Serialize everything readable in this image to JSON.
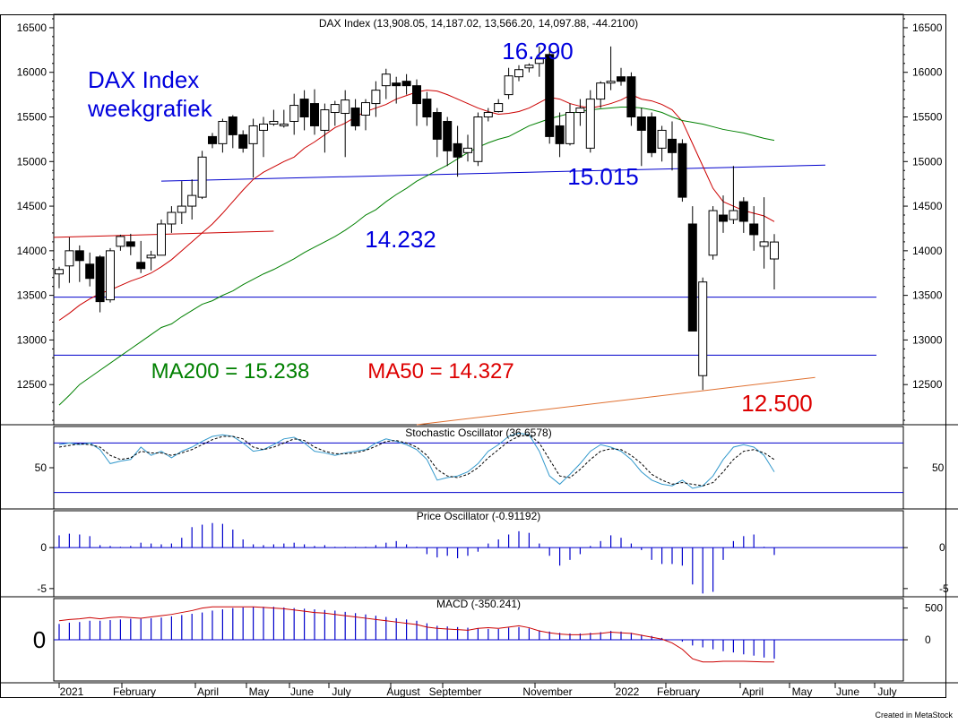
{
  "chart_data": {
    "type": "candlestick",
    "title": "DAX Index (13,908.05, 14,187.02, 13,566.20, 14,097.88, -44.2100)",
    "footer": "Created in MetaStock",
    "price_axis": {
      "ylim": [
        12050,
        16650
      ],
      "ticks": [
        12500,
        13000,
        13500,
        14000,
        14500,
        15000,
        15500,
        16000,
        16500
      ]
    },
    "time_axis": {
      "labels": [
        "2021",
        "February",
        "April",
        "May",
        "June",
        "July",
        "August",
        "September",
        "November",
        "2022",
        "February",
        "April",
        "May",
        "June",
        "July"
      ]
    },
    "candles": [
      {
        "o": 13740,
        "h": 13820,
        "l": 13580,
        "c": 13790
      },
      {
        "o": 13830,
        "h": 14150,
        "l": 13640,
        "c": 14000
      },
      {
        "o": 14000,
        "h": 14060,
        "l": 13650,
        "c": 13890
      },
      {
        "o": 13850,
        "h": 13980,
        "l": 13600,
        "c": 13690
      },
      {
        "o": 13930,
        "h": 13950,
        "l": 13310,
        "c": 13430
      },
      {
        "o": 13450,
        "h": 14030,
        "l": 13420,
        "c": 14000
      },
      {
        "o": 14050,
        "h": 14180,
        "l": 14000,
        "c": 14160
      },
      {
        "o": 14100,
        "h": 14190,
        "l": 13950,
        "c": 14050
      },
      {
        "o": 13870,
        "h": 14110,
        "l": 13750,
        "c": 13800
      },
      {
        "o": 13920,
        "h": 14000,
        "l": 13780,
        "c": 13950
      },
      {
        "o": 13950,
        "h": 14350,
        "l": 13950,
        "c": 14300
      },
      {
        "o": 14300,
        "h": 14500,
        "l": 14200,
        "c": 14430
      },
      {
        "o": 14430,
        "h": 14780,
        "l": 14300,
        "c": 14500
      },
      {
        "o": 14500,
        "h": 14800,
        "l": 14350,
        "c": 14620
      },
      {
        "o": 14600,
        "h": 15120,
        "l": 14580,
        "c": 15050
      },
      {
        "o": 15280,
        "h": 15320,
        "l": 15150,
        "c": 15200
      },
      {
        "o": 15200,
        "h": 15480,
        "l": 15100,
        "c": 15450
      },
      {
        "o": 15500,
        "h": 15520,
        "l": 15150,
        "c": 15300
      },
      {
        "o": 15300,
        "h": 15350,
        "l": 15100,
        "c": 15150
      },
      {
        "o": 15200,
        "h": 15480,
        "l": 14820,
        "c": 15400
      },
      {
        "o": 15350,
        "h": 15500,
        "l": 15050,
        "c": 15420
      },
      {
        "o": 15420,
        "h": 15580,
        "l": 15400,
        "c": 15450
      },
      {
        "o": 15400,
        "h": 15580,
        "l": 15380,
        "c": 15420
      },
      {
        "o": 15450,
        "h": 15760,
        "l": 15300,
        "c": 15630
      },
      {
        "o": 15700,
        "h": 15800,
        "l": 15350,
        "c": 15500
      },
      {
        "o": 15650,
        "h": 15810,
        "l": 15300,
        "c": 15400
      },
      {
        "o": 15350,
        "h": 15650,
        "l": 15100,
        "c": 15580
      },
      {
        "o": 15550,
        "h": 15680,
        "l": 15400,
        "c": 15640
      },
      {
        "o": 15540,
        "h": 15800,
        "l": 15050,
        "c": 15690
      },
      {
        "o": 15600,
        "h": 15700,
        "l": 15350,
        "c": 15400
      },
      {
        "o": 15520,
        "h": 15700,
        "l": 15350,
        "c": 15660
      },
      {
        "o": 15650,
        "h": 15900,
        "l": 15500,
        "c": 15800
      },
      {
        "o": 15850,
        "h": 16040,
        "l": 15700,
        "c": 15980
      },
      {
        "o": 15880,
        "h": 15950,
        "l": 15650,
        "c": 15850
      },
      {
        "o": 15900,
        "h": 15980,
        "l": 15750,
        "c": 15850
      },
      {
        "o": 15850,
        "h": 15920,
        "l": 15400,
        "c": 15650
      },
      {
        "o": 15700,
        "h": 15780,
        "l": 15400,
        "c": 15500
      },
      {
        "o": 15550,
        "h": 15600,
        "l": 15050,
        "c": 15250
      },
      {
        "o": 15450,
        "h": 15500,
        "l": 14950,
        "c": 15120
      },
      {
        "o": 15200,
        "h": 15400,
        "l": 14830,
        "c": 15050
      },
      {
        "o": 15100,
        "h": 15300,
        "l": 15000,
        "c": 15150
      },
      {
        "o": 15000,
        "h": 15550,
        "l": 14950,
        "c": 15500
      },
      {
        "o": 15500,
        "h": 15600,
        "l": 15450,
        "c": 15550
      },
      {
        "o": 15560,
        "h": 15700,
        "l": 15550,
        "c": 15650
      },
      {
        "o": 15750,
        "h": 16050,
        "l": 15700,
        "c": 15960
      },
      {
        "o": 15950,
        "h": 16080,
        "l": 15900,
        "c": 16030
      },
      {
        "o": 16050,
        "h": 16100,
        "l": 16000,
        "c": 16080
      },
      {
        "o": 16100,
        "h": 16290,
        "l": 15950,
        "c": 16150
      },
      {
        "o": 16200,
        "h": 16250,
        "l": 15200,
        "c": 15280
      },
      {
        "o": 15400,
        "h": 15550,
        "l": 15050,
        "c": 15200
      },
      {
        "o": 15200,
        "h": 15650,
        "l": 15180,
        "c": 15550
      },
      {
        "o": 15550,
        "h": 15700,
        "l": 15400,
        "c": 15600
      },
      {
        "o": 15150,
        "h": 15800,
        "l": 15100,
        "c": 15700
      },
      {
        "o": 15700,
        "h": 15900,
        "l": 15600,
        "c": 15880
      },
      {
        "o": 15880,
        "h": 16290,
        "l": 15800,
        "c": 15900
      },
      {
        "o": 15950,
        "h": 16050,
        "l": 15850,
        "c": 15900
      },
      {
        "o": 15950,
        "h": 16000,
        "l": 15400,
        "c": 15500
      },
      {
        "o": 15500,
        "h": 15600,
        "l": 14950,
        "c": 15350
      },
      {
        "o": 15500,
        "h": 15550,
        "l": 15050,
        "c": 15100
      },
      {
        "o": 15150,
        "h": 15400,
        "l": 15000,
        "c": 15350
      },
      {
        "o": 15250,
        "h": 15450,
        "l": 14900,
        "c": 15100
      },
      {
        "o": 15200,
        "h": 15250,
        "l": 14550,
        "c": 14600
      },
      {
        "o": 14300,
        "h": 14500,
        "l": 13100,
        "c": 13100
      },
      {
        "o": 12600,
        "h": 13700,
        "l": 12440,
        "c": 13650
      },
      {
        "o": 13950,
        "h": 14500,
        "l": 13900,
        "c": 14450
      },
      {
        "o": 14400,
        "h": 14620,
        "l": 14200,
        "c": 14330
      },
      {
        "o": 14350,
        "h": 14950,
        "l": 14300,
        "c": 14450
      },
      {
        "o": 14550,
        "h": 14600,
        "l": 14200,
        "c": 14330
      },
      {
        "o": 14300,
        "h": 14500,
        "l": 14000,
        "c": 14180
      },
      {
        "o": 14050,
        "h": 14600,
        "l": 13800,
        "c": 14100
      },
      {
        "o": 13908,
        "h": 14187,
        "l": 13566,
        "c": 14098
      }
    ],
    "series": [
      {
        "name": "MA50",
        "color": "#cc0000",
        "values": [
          13220,
          13300,
          13390,
          13460,
          13520,
          13560,
          13610,
          13660,
          13700,
          13750,
          13820,
          13900,
          14000,
          14100,
          14200,
          14300,
          14420,
          14550,
          14680,
          14800,
          14880,
          14940,
          15000,
          15050,
          15150,
          15220,
          15300,
          15380,
          15430,
          15500,
          15560,
          15600,
          15640,
          15700,
          15740,
          15780,
          15800,
          15790,
          15750,
          15700,
          15650,
          15600,
          15560,
          15530,
          15540,
          15560,
          15600,
          15660,
          15720,
          15700,
          15650,
          15620,
          15600,
          15620,
          15650,
          15690,
          15750,
          15700,
          15680,
          15640,
          15580,
          15450,
          15200,
          14950,
          14700,
          14550,
          14500,
          14450,
          14420,
          14390,
          14327
        ]
      },
      {
        "name": "MA200",
        "color": "#008000",
        "values": [
          12270,
          12380,
          12500,
          12580,
          12660,
          12740,
          12820,
          12900,
          12980,
          13060,
          13140,
          13180,
          13260,
          13330,
          13400,
          13440,
          13500,
          13550,
          13620,
          13680,
          13740,
          13790,
          13850,
          13910,
          13980,
          14040,
          14100,
          14160,
          14230,
          14310,
          14400,
          14460,
          14550,
          14630,
          14700,
          14780,
          14840,
          14900,
          14960,
          15030,
          15100,
          15160,
          15210,
          15250,
          15280,
          15340,
          15400,
          15440,
          15480,
          15510,
          15540,
          15560,
          15580,
          15590,
          15600,
          15610,
          15610,
          15600,
          15580,
          15550,
          15500,
          15460,
          15440,
          15420,
          15390,
          15360,
          15340,
          15320,
          15290,
          15260,
          15238
        ]
      }
    ],
    "annotations": [
      {
        "text": "DAX Index\nweekgrafiek",
        "color": "#0000dd"
      },
      {
        "text": "16.290",
        "color": "#0000dd"
      },
      {
        "text": "15.015",
        "color": "#0000dd"
      },
      {
        "text": "14.232",
        "color": "#0000dd"
      },
      {
        "text": "MA200 = 15.238",
        "color": "#008000"
      },
      {
        "text": "MA50 = 14.327",
        "color": "#dd0000"
      },
      {
        "text": "12.500",
        "color": "#dd0000"
      }
    ],
    "lines": [
      {
        "color": "#0000cc",
        "from": {
          "i": 10,
          "y": 14780
        },
        "to": {
          "i": 75,
          "y": 14960
        }
      },
      {
        "color": "#0000cc",
        "from": {
          "i": -1,
          "y": 13480
        },
        "to": {
          "i": 80,
          "y": 13480
        }
      },
      {
        "color": "#0000cc",
        "from": {
          "i": -1,
          "y": 12830
        },
        "to": {
          "i": 80,
          "y": 12830
        }
      },
      {
        "color": "#cc0000",
        "from": {
          "i": -1,
          "y": 14150
        },
        "to": {
          "i": 21,
          "y": 14220
        }
      },
      {
        "color": "#e07030",
        "from": {
          "i": 35,
          "y": 12050
        },
        "to": {
          "i": 74,
          "y": 12580
        }
      }
    ],
    "stochastic": {
      "title": "Stochastic Oscillator (36.6578)",
      "ylim": [
        0,
        100
      ],
      "ticks": [
        50
      ],
      "levels": [
        80,
        20
      ],
      "k": [
        78,
        80,
        78,
        80,
        72,
        55,
        58,
        60,
        75,
        65,
        70,
        62,
        70,
        75,
        82,
        88,
        90,
        88,
        80,
        70,
        72,
        78,
        85,
        87,
        80,
        70,
        68,
        65,
        68,
        70,
        72,
        80,
        85,
        82,
        78,
        72,
        60,
        35,
        38,
        40,
        45,
        55,
        70,
        78,
        88,
        92,
        90,
        70,
        40,
        30,
        42,
        55,
        70,
        78,
        75,
        70,
        60,
        45,
        35,
        30,
        28,
        35,
        25,
        28,
        40,
        60,
        75,
        78,
        75,
        65,
        45
      ],
      "d": [
        75,
        77,
        79,
        78,
        75,
        65,
        60,
        62,
        70,
        68,
        68,
        65,
        68,
        72,
        78,
        84,
        88,
        88,
        85,
        75,
        72,
        75,
        80,
        85,
        83,
        75,
        70,
        67,
        67,
        68,
        71,
        76,
        82,
        83,
        80,
        75,
        65,
        48,
        40,
        38,
        42,
        50,
        62,
        72,
        82,
        88,
        90,
        80,
        60,
        40,
        38,
        48,
        60,
        70,
        73,
        72,
        65,
        55,
        42,
        35,
        30,
        32,
        30,
        28,
        32,
        45,
        60,
        70,
        72,
        68,
        60
      ]
    },
    "price_oscillator": {
      "title": "Price Oscillator (-0.91192)",
      "ylim": [
        -6,
        4.5
      ],
      "ticks": [
        0,
        -5
      ],
      "values": [
        1.5,
        1.7,
        1.6,
        1.4,
        0.3,
        0.2,
        0.1,
        0.2,
        0.6,
        0.5,
        0.4,
        0.5,
        1.2,
        2.5,
        2.8,
        3.0,
        2.9,
        2.2,
        1.0,
        0.4,
        0.3,
        0.4,
        0.5,
        0.6,
        0.4,
        0.2,
        0.3,
        0.1,
        0.1,
        0.1,
        0.1,
        0.3,
        0.6,
        0.8,
        0.4,
        0.1,
        -0.8,
        -1.2,
        -1.0,
        -1.3,
        -1.0,
        -0.5,
        0.5,
        1.0,
        1.6,
        2.0,
        1.8,
        0.5,
        -1.0,
        -2.2,
        -1.5,
        -0.8,
        0.2,
        0.8,
        1.5,
        1.2,
        0.5,
        -0.3,
        -1.5,
        -2.0,
        -2.0,
        -2.2,
        -4.5,
        -5.6,
        -5.4,
        -1.5,
        0.8,
        1.4,
        1.6,
        0.1,
        -0.9
      ]
    },
    "macd": {
      "title": "MACD (-350.241)",
      "ylim": [
        -650,
        650
      ],
      "ticks": [
        500,
        0
      ],
      "big_zero_label": "0",
      "histogram": [
        250,
        270,
        280,
        300,
        300,
        310,
        320,
        330,
        330,
        340,
        350,
        370,
        390,
        410,
        430,
        460,
        480,
        500,
        510,
        520,
        520,
        520,
        510,
        500,
        490,
        480,
        470,
        460,
        440,
        420,
        400,
        380,
        360,
        340,
        320,
        300,
        260,
        220,
        210,
        200,
        190,
        180,
        170,
        170,
        190,
        200,
        180,
        150,
        130,
        110,
        100,
        100,
        110,
        120,
        140,
        130,
        110,
        80,
        60,
        30,
        0,
        -30,
        -90,
        -120,
        -150,
        -180,
        -200,
        -230,
        -250,
        -280,
        -300
      ],
      "signal": [
        300,
        320,
        330,
        350,
        330,
        350,
        360,
        350,
        340,
        360,
        380,
        400,
        430,
        460,
        500,
        520,
        520,
        520,
        520,
        520,
        510,
        500,
        490,
        470,
        450,
        430,
        420,
        400,
        380,
        360,
        340,
        320,
        300,
        280,
        260,
        240,
        200,
        180,
        170,
        160,
        150,
        180,
        190,
        180,
        200,
        220,
        190,
        140,
        110,
        90,
        80,
        80,
        90,
        100,
        120,
        110,
        100,
        70,
        40,
        10,
        -50,
        -150,
        -300,
        -350,
        -350,
        -340,
        -340,
        -340,
        -345,
        -350,
        -350
      ]
    }
  }
}
